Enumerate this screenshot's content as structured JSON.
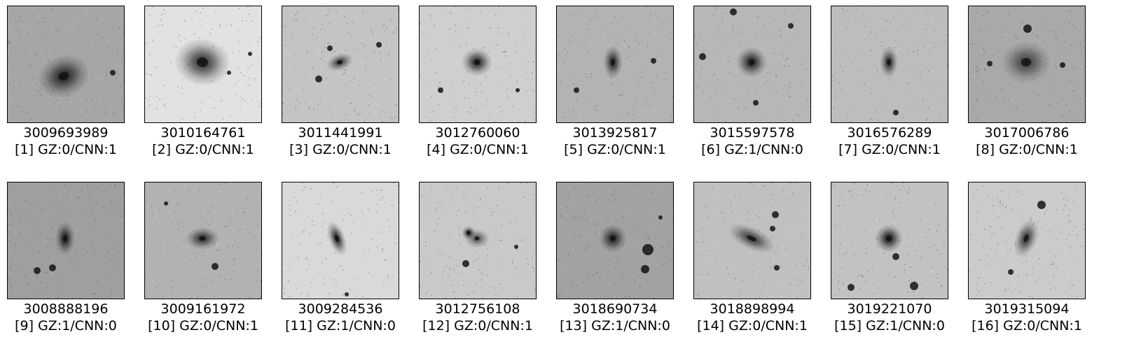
{
  "panels": [
    {
      "id": "3009693989",
      "label": "[1] GZ:0/CNN:1",
      "bg": "#a6a6a6",
      "noise": 0.1
    },
    {
      "id": "3010164761",
      "label": "[2] GZ:0/CNN:1",
      "bg": "#e2e2e2",
      "noise": 0.12
    },
    {
      "id": "3011441991",
      "label": "[3] GZ:0/CNN:1",
      "bg": "#c4c4c4",
      "noise": 0.12
    },
    {
      "id": "3012760060",
      "label": "[4] GZ:0/CNN:1",
      "bg": "#cfcfcf",
      "noise": 0.12
    },
    {
      "id": "3013925817",
      "label": "[5] GZ:0/CNN:1",
      "bg": "#b3b3b3",
      "noise": 0.1
    },
    {
      "id": "3015597578",
      "label": "[6] GZ:1/CNN:0",
      "bg": "#b7b7b7",
      "noise": 0.1
    },
    {
      "id": "3016576289",
      "label": "[7] GZ:0/CNN:1",
      "bg": "#bdbdbd",
      "noise": 0.1
    },
    {
      "id": "3017006786",
      "label": "[8] GZ:0/CNN:1",
      "bg": "#a9a9a9",
      "noise": 0.1
    },
    {
      "id": "3008888196",
      "label": "[9] GZ:1/CNN:0",
      "bg": "#9f9f9f",
      "noise": 0.1
    },
    {
      "id": "3009161972",
      "label": "[10] GZ:0/CNN:1",
      "bg": "#b2b2b2",
      "noise": 0.1
    },
    {
      "id": "3009284536",
      "label": "[11] GZ:1/CNN:0",
      "bg": "#d9d9d9",
      "noise": 0.12
    },
    {
      "id": "3012756108",
      "label": "[12] GZ:0/CNN:1",
      "bg": "#c9c9c9",
      "noise": 0.12
    },
    {
      "id": "3018690734",
      "label": "[13] GZ:1/CNN:0",
      "bg": "#a2a2a2",
      "noise": 0.1
    },
    {
      "id": "3018898994",
      "label": "[14] GZ:0/CNN:1",
      "bg": "#c0c0c0",
      "noise": 0.1
    },
    {
      "id": "3019221070",
      "label": "[15] GZ:1/CNN:0",
      "bg": "#c2c2c2",
      "noise": 0.12
    },
    {
      "id": "3019315094",
      "label": "[16] GZ:0/CNN:1",
      "bg": "#cbcbcb",
      "noise": 0.12
    }
  ]
}
